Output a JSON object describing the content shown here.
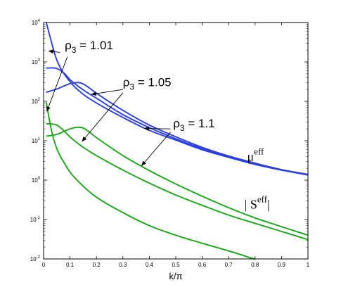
{
  "chart_data": {
    "type": "line",
    "title": "",
    "xlabel": "k/π",
    "ylabel": "",
    "xlim": [
      0,
      1
    ],
    "ylim": [
      0.01,
      10000
    ],
    "yscale": "log",
    "grid": false,
    "x_ticks": [
      0,
      0.1,
      0.2,
      0.3,
      0.4,
      0.5,
      0.6,
      0.7,
      0.8,
      0.9,
      1
    ],
    "x_tick_labels": [
      "0",
      "0.1",
      "0.2",
      "0.3",
      "0.4",
      "0.5",
      "0.6",
      "0.7",
      "0.8",
      "0.9",
      "1"
    ],
    "y_ticks": [
      0.01,
      0.1,
      1,
      10,
      100,
      1000,
      10000
    ],
    "y_tick_labels": [
      {
        "base": "10",
        "exp": "-2"
      },
      {
        "base": "10",
        "exp": "-1"
      },
      {
        "base": "10",
        "exp": "0"
      },
      {
        "base": "10",
        "exp": "1"
      },
      {
        "base": "10",
        "exp": "2"
      },
      {
        "base": "10",
        "exp": "3"
      },
      {
        "base": "10",
        "exp": "4"
      }
    ],
    "colors": {
      "mu": "#2b3fe0",
      "s": "#1aa51a"
    },
    "series": [
      {
        "group": "mu",
        "rho": "1.01",
        "x": [
          0.01,
          0.05,
          0.1,
          0.15,
          0.2,
          0.3,
          0.4,
          0.5,
          0.6,
          0.7,
          0.8,
          0.9,
          1.0
        ],
        "y": [
          10000,
          1120,
          315,
          151,
          91,
          39,
          18.3,
          10.4,
          5.9,
          3.8,
          2.5,
          1.8,
          1.35
        ]
      },
      {
        "group": "mu",
        "rho": "1.05",
        "x": [
          0.01,
          0.05,
          0.08,
          0.1,
          0.15,
          0.2,
          0.3,
          0.4,
          0.5,
          0.6,
          0.7,
          0.8,
          0.9,
          1.0
        ],
        "y": [
          700,
          680,
          500,
          355,
          195,
          120,
          46,
          21.5,
          11.2,
          6.3,
          3.9,
          2.6,
          1.8,
          1.37
        ]
      },
      {
        "group": "mu",
        "rho": "1.1",
        "x": [
          0.01,
          0.05,
          0.1,
          0.13,
          0.15,
          0.2,
          0.3,
          0.4,
          0.5,
          0.6,
          0.7,
          0.8,
          0.9,
          1.0
        ],
        "y": [
          170,
          205,
          280,
          300,
          275,
          160,
          59,
          25,
          12.6,
          6.8,
          4.1,
          2.7,
          1.85,
          1.4
        ]
      },
      {
        "group": "s",
        "rho": "1.01",
        "x": [
          0.01,
          0.03,
          0.05,
          0.08,
          0.1,
          0.15,
          0.2,
          0.3,
          0.4,
          0.5,
          0.6,
          0.7,
          0.8
        ],
        "y": [
          95,
          18,
          6.3,
          2.6,
          1.6,
          0.7,
          0.37,
          0.15,
          0.07,
          0.04,
          0.025,
          0.016,
          0.0098
        ]
      },
      {
        "group": "s",
        "rho": "1.05",
        "x": [
          0.01,
          0.05,
          0.08,
          0.1,
          0.15,
          0.2,
          0.3,
          0.4,
          0.5,
          0.6,
          0.7,
          0.8,
          0.9,
          1.0
        ],
        "y": [
          27,
          25,
          17,
          12.5,
          6.8,
          4.2,
          1.8,
          0.84,
          0.42,
          0.23,
          0.13,
          0.08,
          0.05,
          0.031
        ]
      },
      {
        "group": "s",
        "rho": "1.1",
        "x": [
          0.01,
          0.05,
          0.1,
          0.13,
          0.15,
          0.2,
          0.3,
          0.4,
          0.5,
          0.6,
          0.7,
          0.8,
          0.9,
          1.0
        ],
        "y": [
          13,
          14.5,
          20,
          22,
          21,
          12,
          4.2,
          1.75,
          0.8,
          0.39,
          0.2,
          0.11,
          0.066,
          0.04
        ]
      }
    ],
    "annotations": [
      {
        "label": {
          "main": "ρ",
          "sub": "3",
          "rest": " = 1.01"
        },
        "text_at": [
          0.08,
          2100
        ],
        "arrows": [
          {
            "from": [
              0.062,
              1750
            ],
            "to": [
              0.018,
              1900
            ]
          },
          {
            "from": [
              0.09,
              1350
            ],
            "to": [
              0.012,
              55
            ]
          }
        ]
      },
      {
        "label": {
          "main": "ρ",
          "sub": "3",
          "rest": " = 1.05"
        },
        "text_at": [
          0.3,
          240
        ],
        "arrows": [
          {
            "from": [
              0.3,
              200
            ],
            "to": [
              0.18,
              150
            ]
          },
          {
            "from": [
              0.3,
              165
            ],
            "to": [
              0.145,
              9.5
            ]
          }
        ]
      },
      {
        "label": {
          "main": "ρ",
          "sub": "3",
          "rest": " = 1.1"
        },
        "text_at": [
          0.49,
          22
        ],
        "arrows": [
          {
            "from": [
              0.48,
              20
            ],
            "to": [
              0.38,
              20.5
            ]
          },
          {
            "from": [
              0.48,
              16.5
            ],
            "to": [
              0.37,
              2.3
            ]
          }
        ]
      }
    ],
    "series_labels": [
      {
        "text": "μ",
        "sup": "eff",
        "at": [
          0.77,
          3.1
        ]
      },
      {
        "text": "| S",
        "sup": "eff",
        "tail": "|",
        "at": [
          0.76,
          0.19
        ]
      }
    ]
  }
}
